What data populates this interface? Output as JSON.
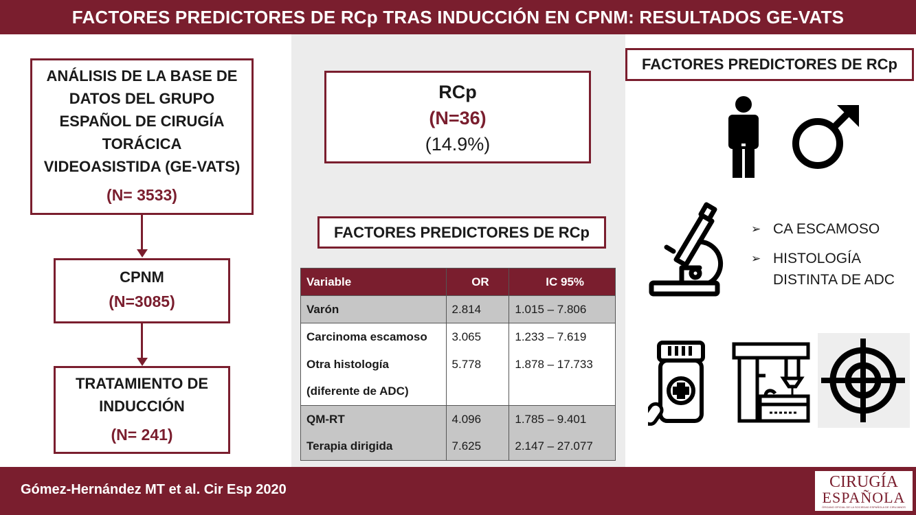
{
  "title": "FACTORES PREDICTORES DE RCp TRAS INDUCCIÓN EN CPNM: RESULTADOS GE-VATS",
  "flow": {
    "box1": {
      "lines": [
        "ANÁLISIS DE LA BASE DE",
        "DATOS DEL GRUPO",
        "ESPAÑOL DE CIRUGÍA",
        "TORÁCICA",
        "VIDEOASISTIDA (GE-VATS)"
      ],
      "count": "(N= 3533)"
    },
    "box2": {
      "label": "CPNM",
      "count": "(N=3085)"
    },
    "box3": {
      "lines": [
        "TRATAMIENTO DE",
        "INDUCCIÓN"
      ],
      "count": "(N= 241)"
    }
  },
  "rcp": {
    "label": "RCp",
    "count": "(N=36)",
    "percent": "(14.9%)"
  },
  "predictors_title": "FACTORES PREDICTORES DE RCp",
  "table": {
    "headers": [
      "Variable",
      "OR",
      "IC 95%"
    ],
    "rows": [
      {
        "variable": "Varón",
        "or": "2.814",
        "ci": "1.015 – 7.806"
      },
      {
        "variable": "Carcinoma escamoso",
        "or": "3.065",
        "ci": "1.233 – 7.619"
      },
      {
        "variable": "Otra histología",
        "or": "5.778",
        "ci": "1.878 – 17.733"
      },
      {
        "variable": "(diferente de ADC)",
        "or": "",
        "ci": ""
      },
      {
        "variable": "QM-RT",
        "or": "4.096",
        "ci": "1.785 – 9.401"
      },
      {
        "variable": "Terapia dirigida",
        "or": "7.625",
        "ci": "2.147 – 27.077"
      }
    ]
  },
  "right_title": "FACTORES PREDICTORES DE RCp",
  "bullets": [
    "CA ESCAMOSO",
    "HISTOLOGÍA",
    "DISTINTA DE ADC"
  ],
  "icons": [
    "man-icon",
    "male-symbol-icon",
    "microscope-icon",
    "medicine-bottle-icon",
    "radiotherapy-machine-icon",
    "target-icon"
  ],
  "footer": {
    "citation": "Gómez-Hernández MT et al. Cir Esp 2020",
    "logo_line1": "CIRUGÍA",
    "logo_line2": "ESPAÑOLA",
    "logo_line3": "ÓRGANO OFICIAL DE LA SOCIEDAD ESPAÑOLA DE CIRUJANOS"
  },
  "colors": {
    "accent": "#7a1e2e",
    "panel": "#ececec",
    "table_shade": "#c6c6c6"
  }
}
